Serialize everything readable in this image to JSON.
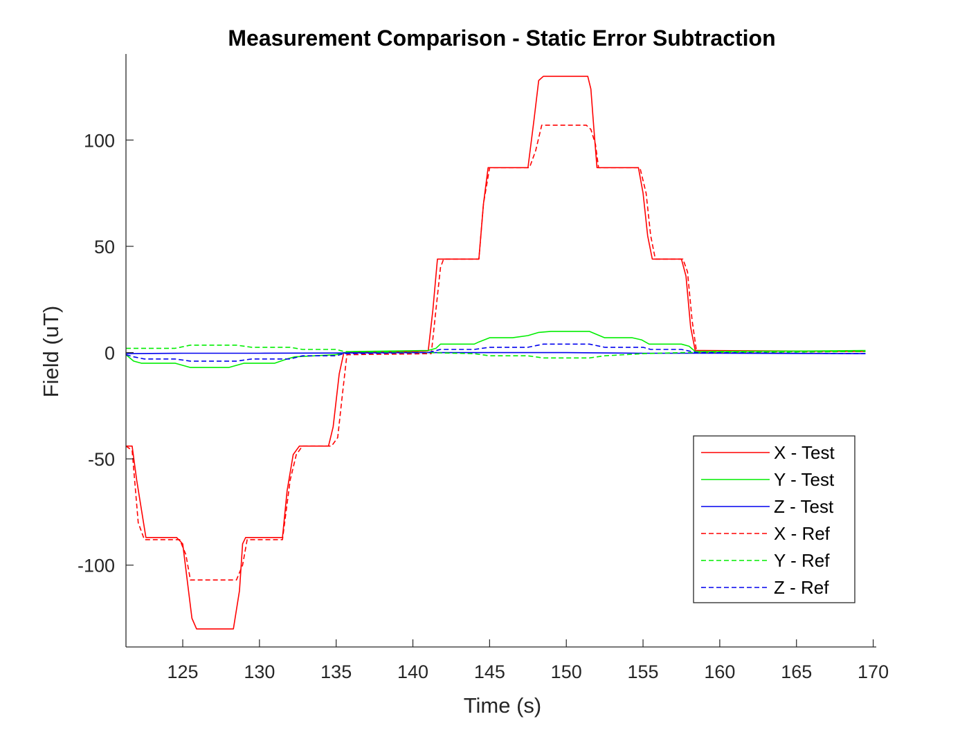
{
  "chart_data": {
    "type": "line",
    "title": "Measurement Comparison - Static Error Subtraction",
    "xlabel": "Time (s)",
    "ylabel": "Field (uT)",
    "xlim": [
      121.3,
      170.2
    ],
    "ylim": [
      -138.5,
      140.5
    ],
    "xticks": [
      125,
      130,
      135,
      140,
      145,
      150,
      155,
      160,
      165,
      170
    ],
    "xtick_labels": [
      "125",
      "130",
      "135",
      "140",
      "145",
      "150",
      "155",
      "160",
      "165",
      "170"
    ],
    "yticks": [
      -100,
      -50,
      0,
      50,
      100
    ],
    "ytick_labels": [
      "-100",
      "-50",
      "0",
      "50",
      "100"
    ],
    "grid": false,
    "legend_position": "lower-right",
    "series": [
      {
        "name": "X - Test",
        "color": "#ff0000",
        "dash": "solid",
        "x": [
          121.3,
          121.7,
          122.0,
          122.6,
          124.6,
          125.0,
          125.6,
          125.9,
          128.3,
          128.7,
          128.9,
          129.1,
          131.5,
          131.8,
          132.2,
          132.6,
          134.5,
          134.8,
          135.2,
          135.5,
          140.0,
          141.0,
          141.3,
          141.6,
          141.8,
          144.3,
          144.6,
          144.9,
          147.5,
          147.9,
          148.2,
          148.5,
          151.4,
          151.6,
          151.8,
          152.0,
          154.7,
          155.0,
          155.3,
          155.6,
          157.5,
          157.8,
          158.1,
          158.4,
          169.5
        ],
        "y": [
          -44,
          -44,
          -60,
          -87,
          -87,
          -90,
          -125,
          -130,
          -130,
          -112,
          -90,
          -87,
          -87,
          -65,
          -48,
          -44,
          -44,
          -35,
          -10,
          0,
          0.5,
          0.8,
          20,
          44,
          44,
          44,
          70,
          87,
          87,
          110,
          128,
          130,
          130,
          124,
          105,
          87,
          87,
          75,
          55,
          44,
          44,
          36,
          12,
          1,
          0.5
        ]
      },
      {
        "name": "Y - Test",
        "color": "#00ee00",
        "dash": "solid",
        "x": [
          121.3,
          121.8,
          122.3,
          124.5,
          125.0,
          125.5,
          128.0,
          128.5,
          129.0,
          131.0,
          131.8,
          132.3,
          135.0,
          135.5,
          136.0,
          141.0,
          141.5,
          141.8,
          144.0,
          144.3,
          145.0,
          146.5,
          147.5,
          148.2,
          149.0,
          151.5,
          152.0,
          152.5,
          154.3,
          154.9,
          155.4,
          157.5,
          158.0,
          158.4,
          165.0,
          169.5
        ],
        "y": [
          -1,
          -4,
          -5,
          -5,
          -6,
          -7,
          -7,
          -6,
          -5,
          -5,
          -3,
          -2,
          -1,
          0,
          0.5,
          1,
          2,
          4,
          4,
          5,
          7,
          7,
          8,
          9.5,
          10,
          10,
          8.5,
          7,
          7,
          6,
          4,
          4,
          3,
          0.5,
          0.7,
          1
        ]
      },
      {
        "name": "Z - Test",
        "color": "#0000ee",
        "dash": "solid",
        "x": [
          121.3,
          125.0,
          130.0,
          135.0,
          140.0,
          145.0,
          150.0,
          155.0,
          160.0,
          165.0,
          169.5
        ],
        "y": [
          -0.5,
          -0.3,
          -0.3,
          -0.2,
          0,
          0,
          0,
          -0.3,
          -0.3,
          -0.4,
          -0.5
        ]
      },
      {
        "name": "X - Ref",
        "color": "#ff0000",
        "dash": "dashed",
        "x": [
          121.3,
          121.7,
          122.1,
          122.5,
          124.8,
          125.2,
          125.5,
          128.5,
          128.9,
          129.2,
          131.5,
          132.0,
          132.4,
          132.8,
          134.7,
          135.1,
          135.4,
          135.7,
          141.2,
          141.5,
          141.8,
          142.0,
          144.3,
          144.6,
          145.0,
          147.6,
          148.0,
          148.4,
          151.3,
          151.6,
          151.9,
          152.1,
          154.8,
          155.2,
          155.5,
          155.8,
          157.6,
          157.9,
          158.2,
          158.5,
          169.5
        ],
        "y": [
          -44,
          -46,
          -80,
          -88,
          -88,
          -95,
          -107,
          -107,
          -100,
          -88,
          -88,
          -60,
          -48,
          -44,
          -44,
          -40,
          -20,
          -1,
          -0.5,
          20,
          40,
          44,
          44,
          70,
          87,
          87,
          95,
          107,
          107,
          105,
          98,
          87,
          87,
          75,
          55,
          44,
          44,
          38,
          15,
          0,
          0.5
        ]
      },
      {
        "name": "Y - Ref",
        "color": "#00ee00",
        "dash": "dashed",
        "x": [
          121.3,
          124.5,
          125.5,
          128.5,
          129.5,
          132.0,
          132.8,
          135.0,
          135.5,
          141.0,
          144.0,
          145.0,
          147.5,
          148.5,
          151.5,
          152.5,
          155.0,
          157.5,
          158.5,
          165.0,
          169.5
        ],
        "y": [
          2,
          2,
          3.5,
          3.5,
          2.5,
          2.5,
          1.5,
          1.5,
          0.5,
          0,
          -0.5,
          -1.5,
          -1.5,
          -2.5,
          -2.5,
          -1.5,
          -0.5,
          0,
          0,
          0.3,
          0.5
        ]
      },
      {
        "name": "Z - Ref",
        "color": "#0000ee",
        "dash": "dashed",
        "x": [
          121.3,
          121.8,
          122.5,
          124.5,
          125.5,
          128.5,
          129.5,
          132.0,
          132.8,
          135.0,
          135.5,
          141.0,
          141.8,
          144.0,
          145.0,
          147.5,
          148.5,
          151.5,
          152.5,
          155.0,
          155.5,
          157.5,
          158.5,
          165.0,
          169.5
        ],
        "y": [
          -1,
          -2,
          -3,
          -3,
          -4,
          -4,
          -3,
          -3,
          -1.5,
          -1.5,
          -0.5,
          0,
          1.5,
          1.5,
          2.5,
          2.5,
          4,
          4,
          2.5,
          2.5,
          1.5,
          1.5,
          0,
          -0.3,
          -0.5
        ]
      }
    ]
  }
}
